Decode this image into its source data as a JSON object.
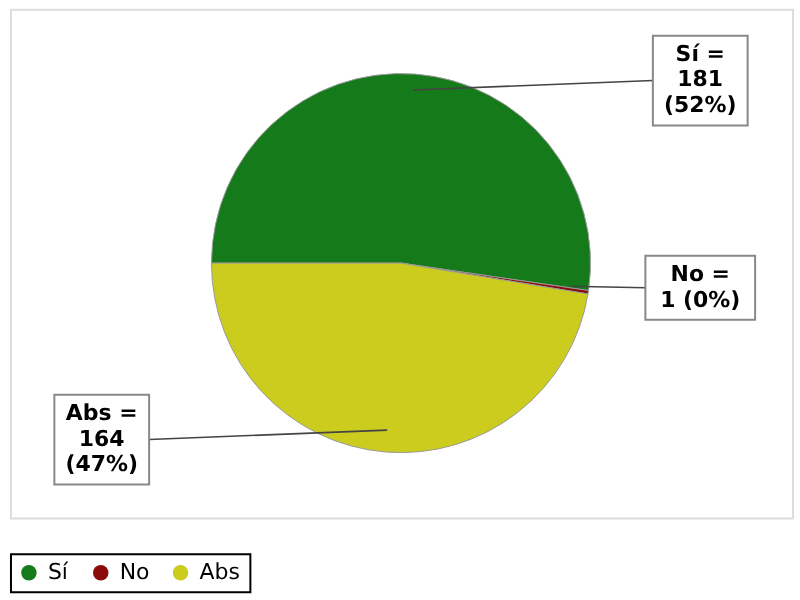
{
  "chart_data": {
    "type": "pie",
    "categories": [
      "Sí",
      "No",
      "Abs"
    ],
    "values": [
      181,
      1,
      164
    ],
    "colors": [
      "#147a1a",
      "#8b0a0a",
      "#cccc1e"
    ],
    "value_labels": [
      "Sí =\n181\n(52%)",
      "No =\n1 (0%)",
      "Abs =\n164\n(47%)"
    ],
    "legend": "bottom"
  }
}
